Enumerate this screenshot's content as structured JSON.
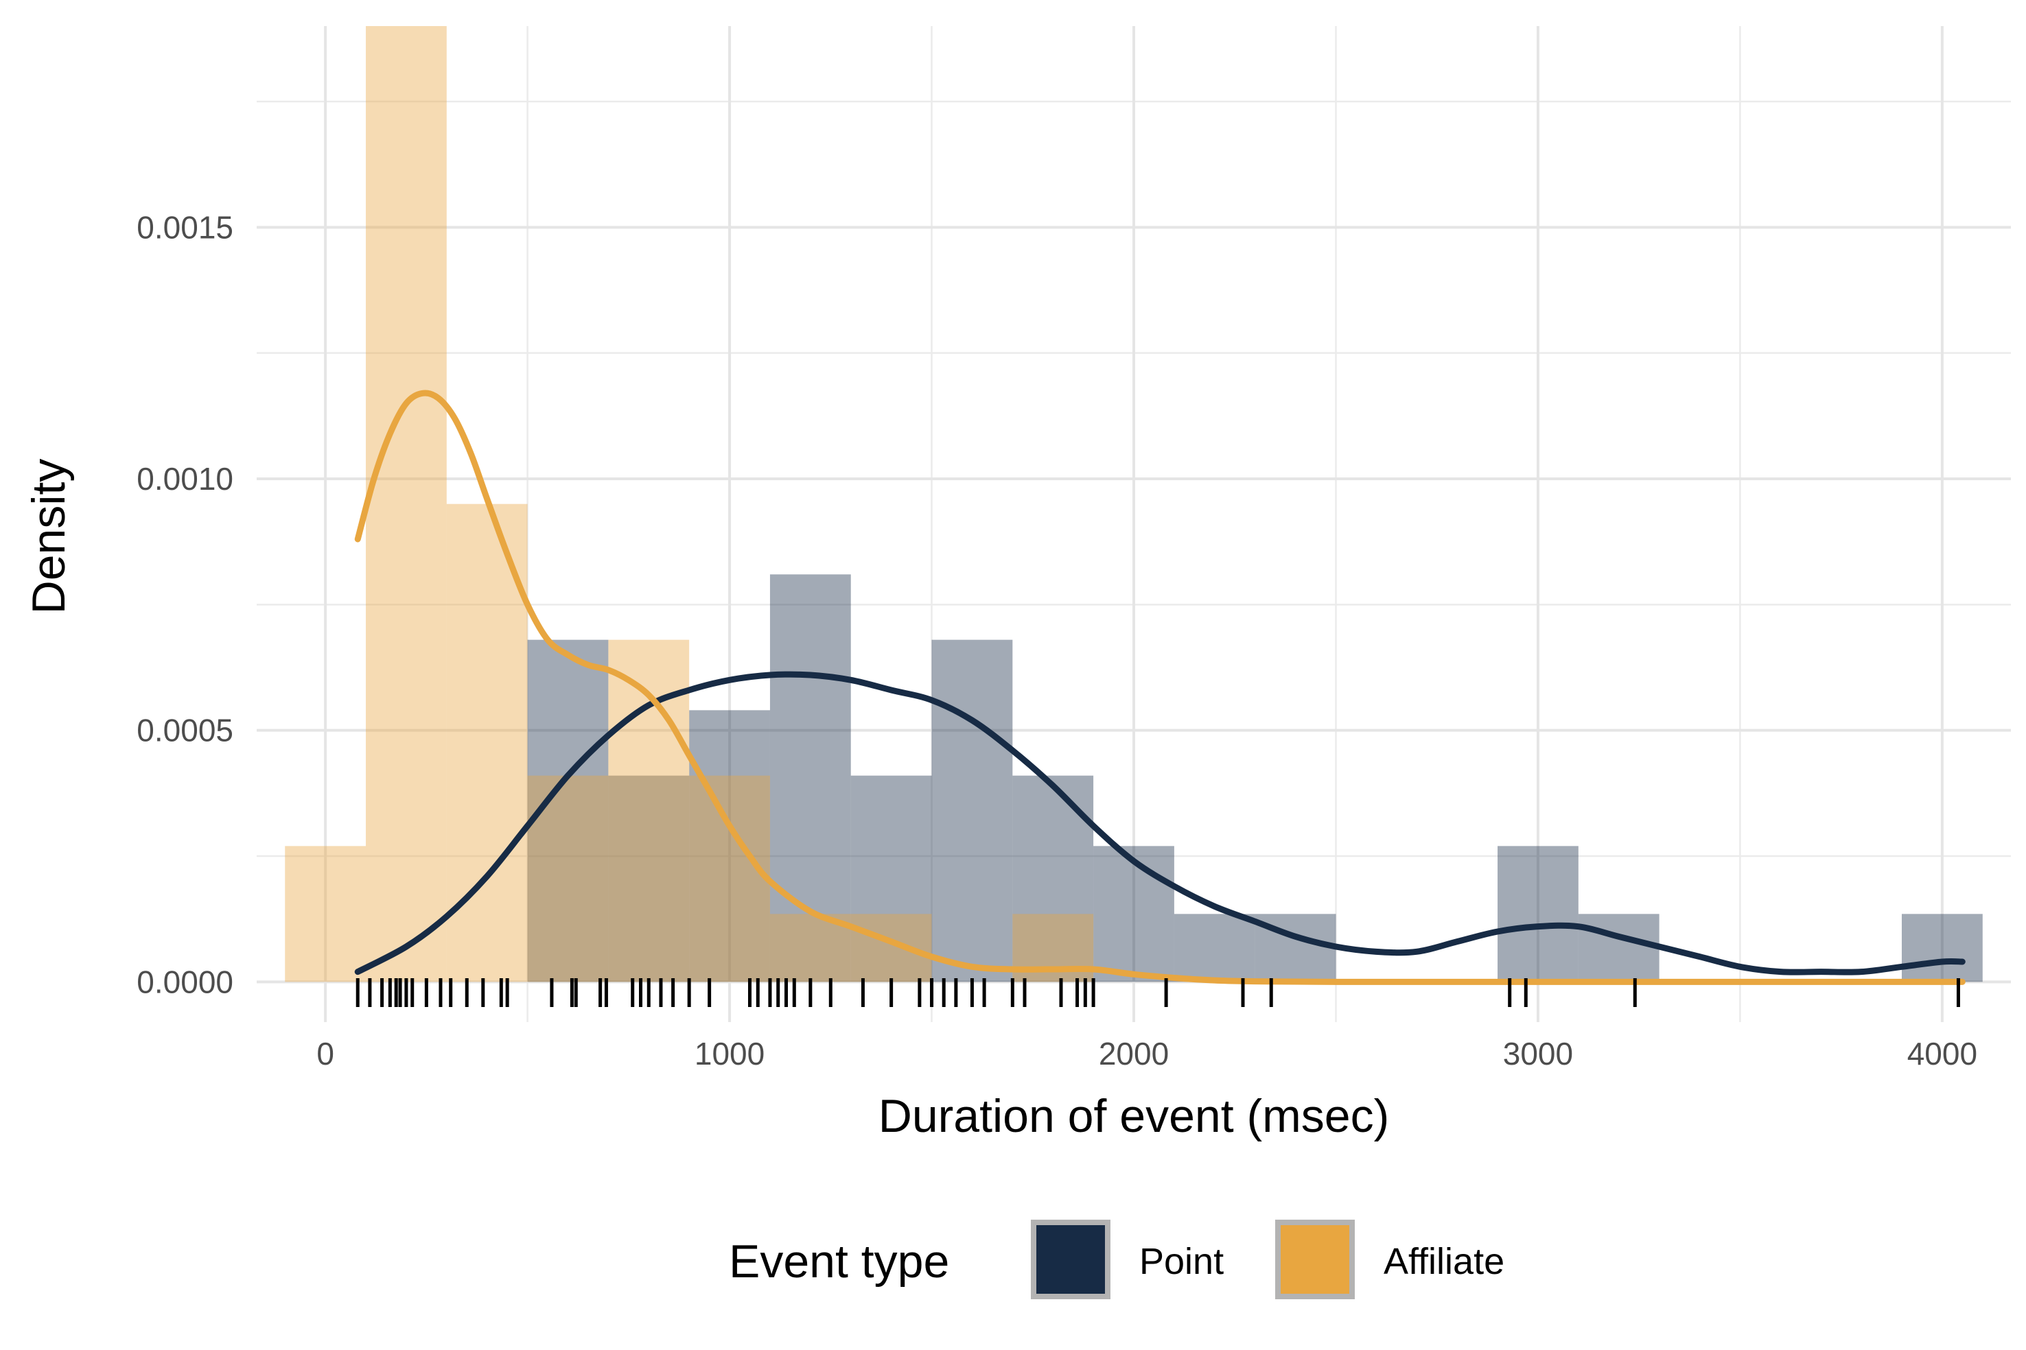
{
  "chart_data": {
    "type": "histogram",
    "xlabel": "Duration of event (msec)",
    "ylabel": "Density",
    "xlim": [
      -170,
      4170
    ],
    "ylim": [
      -8e-05,
      0.0019
    ],
    "x_ticks": [
      0,
      1000,
      2000,
      3000,
      4000
    ],
    "x_tick_labels": [
      "0",
      "1000",
      "2000",
      "3000",
      "4000"
    ],
    "y_ticks": [
      0,
      0.0005,
      0.001,
      0.0015
    ],
    "y_tick_labels": [
      "0.0000",
      "0.0005",
      "0.0010",
      "0.0015"
    ],
    "grid": true,
    "legend": {
      "title": "Event type",
      "position": "bottom",
      "entries": [
        {
          "label": "Point",
          "color": "#172b45"
        },
        {
          "label": "Affiliate",
          "color": "#e8a640"
        }
      ]
    },
    "bin_width": 200,
    "series": [
      {
        "name": "Point",
        "color": "#172b45",
        "histogram": [
          {
            "x0": 500,
            "x1": 700,
            "density": 0.00068
          },
          {
            "x0": 700,
            "x1": 900,
            "density": 0.00041
          },
          {
            "x0": 900,
            "x1": 1100,
            "density": 0.00054
          },
          {
            "x0": 1100,
            "x1": 1300,
            "density": 0.00081
          },
          {
            "x0": 1300,
            "x1": 1500,
            "density": 0.00041
          },
          {
            "x0": 1500,
            "x1": 1700,
            "density": 0.00068
          },
          {
            "x0": 1700,
            "x1": 1900,
            "density": 0.00041
          },
          {
            "x0": 1900,
            "x1": 2100,
            "density": 0.00027
          },
          {
            "x0": 2100,
            "x1": 2300,
            "density": 0.000135
          },
          {
            "x0": 2300,
            "x1": 2500,
            "density": 0.000135
          },
          {
            "x0": 2900,
            "x1": 3100,
            "density": 0.00027
          },
          {
            "x0": 3100,
            "x1": 3300,
            "density": 0.000135
          },
          {
            "x0": 3900,
            "x1": 4100,
            "density": 0.000135
          }
        ],
        "density_curve": [
          [
            80,
            2e-05
          ],
          [
            200,
            7e-05
          ],
          [
            300,
            0.00013
          ],
          [
            400,
            0.00021
          ],
          [
            500,
            0.00031
          ],
          [
            600,
            0.00041
          ],
          [
            700,
            0.00049
          ],
          [
            800,
            0.00055
          ],
          [
            900,
            0.00058
          ],
          [
            1000,
            0.0006
          ],
          [
            1100,
            0.00061
          ],
          [
            1200,
            0.00061
          ],
          [
            1300,
            0.0006
          ],
          [
            1400,
            0.00058
          ],
          [
            1500,
            0.00056
          ],
          [
            1600,
            0.00052
          ],
          [
            1700,
            0.00046
          ],
          [
            1800,
            0.00039
          ],
          [
            1900,
            0.00031
          ],
          [
            2000,
            0.00024
          ],
          [
            2100,
            0.00019
          ],
          [
            2200,
            0.00015
          ],
          [
            2300,
            0.00012
          ],
          [
            2400,
            9e-05
          ],
          [
            2500,
            7e-05
          ],
          [
            2600,
            6e-05
          ],
          [
            2700,
            6e-05
          ],
          [
            2800,
            8e-05
          ],
          [
            2900,
            0.0001
          ],
          [
            3000,
            0.00011
          ],
          [
            3100,
            0.00011
          ],
          [
            3200,
            9e-05
          ],
          [
            3300,
            7e-05
          ],
          [
            3400,
            5e-05
          ],
          [
            3500,
            3e-05
          ],
          [
            3600,
            2e-05
          ],
          [
            3700,
            2e-05
          ],
          [
            3800,
            2e-05
          ],
          [
            3900,
            3e-05
          ],
          [
            4000,
            4e-05
          ],
          [
            4050,
            4e-05
          ]
        ]
      },
      {
        "name": "Affiliate",
        "color": "#e8a640",
        "histogram": [
          {
            "x0": -100,
            "x1": 100,
            "density": 0.00027
          },
          {
            "x0": 100,
            "x1": 300,
            "density": 0.0019
          },
          {
            "x0": 300,
            "x1": 500,
            "density": 0.00095
          },
          {
            "x0": 500,
            "x1": 700,
            "density": 0.00041
          },
          {
            "x0": 700,
            "x1": 900,
            "density": 0.00068
          },
          {
            "x0": 900,
            "x1": 1100,
            "density": 0.00041
          },
          {
            "x0": 1100,
            "x1": 1300,
            "density": 0.000135
          },
          {
            "x0": 1300,
            "x1": 1500,
            "density": 0.000135
          },
          {
            "x0": 1700,
            "x1": 1900,
            "density": 0.000135
          }
        ],
        "density_curve": [
          [
            80,
            0.00088
          ],
          [
            120,
            0.001
          ],
          [
            160,
            0.00109
          ],
          [
            200,
            0.00115
          ],
          [
            240,
            0.00117
          ],
          [
            280,
            0.00116
          ],
          [
            320,
            0.00112
          ],
          [
            360,
            0.00105
          ],
          [
            400,
            0.00096
          ],
          [
            450,
            0.00085
          ],
          [
            500,
            0.00075
          ],
          [
            550,
            0.00068
          ],
          [
            600,
            0.00065
          ],
          [
            650,
            0.00063
          ],
          [
            700,
            0.00062
          ],
          [
            750,
            0.0006
          ],
          [
            800,
            0.00057
          ],
          [
            850,
            0.00052
          ],
          [
            900,
            0.00045
          ],
          [
            950,
            0.00038
          ],
          [
            1000,
            0.00031
          ],
          [
            1050,
            0.00025
          ],
          [
            1100,
            0.0002
          ],
          [
            1200,
            0.00014
          ],
          [
            1300,
            0.00011
          ],
          [
            1400,
            8e-05
          ],
          [
            1500,
            5e-05
          ],
          [
            1600,
            3e-05
          ],
          [
            1700,
            2.5e-05
          ],
          [
            1800,
            2.5e-05
          ],
          [
            1900,
            2.5e-05
          ],
          [
            2000,
            1.5e-05
          ],
          [
            2100,
            8e-06
          ],
          [
            2200,
            3e-06
          ],
          [
            2300,
            1e-06
          ],
          [
            2500,
            0
          ],
          [
            3000,
            0
          ],
          [
            3500,
            0
          ],
          [
            4050,
            0
          ]
        ]
      }
    ],
    "rug": [
      80,
      110,
      140,
      160,
      175,
      185,
      200,
      215,
      250,
      285,
      310,
      350,
      390,
      435,
      450,
      560,
      610,
      620,
      680,
      695,
      760,
      780,
      800,
      830,
      860,
      900,
      950,
      1050,
      1070,
      1100,
      1120,
      1140,
      1160,
      1200,
      1250,
      1330,
      1400,
      1470,
      1500,
      1530,
      1560,
      1600,
      1630,
      1700,
      1730,
      1820,
      1860,
      1880,
      1900,
      2080,
      2270,
      2340,
      2930,
      2970,
      3240,
      4040
    ]
  }
}
